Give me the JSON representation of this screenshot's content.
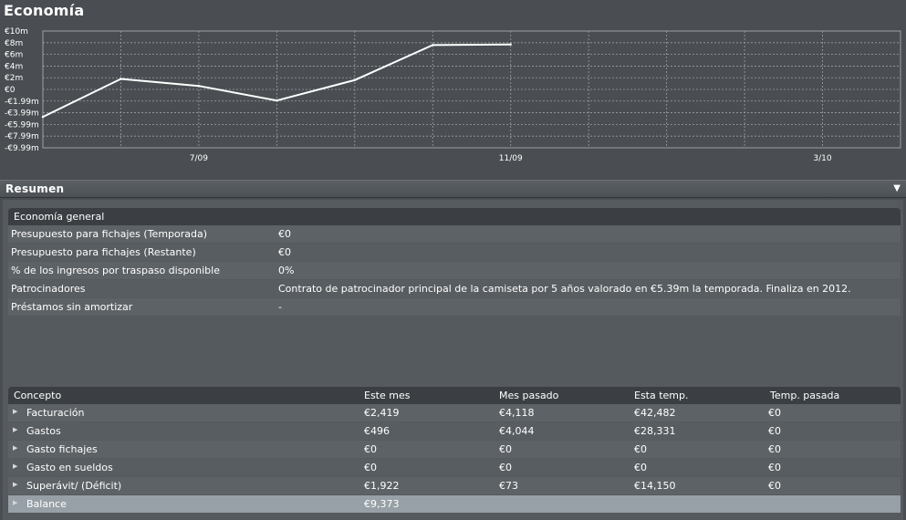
{
  "page": {
    "title": "Economía"
  },
  "chart_data": {
    "type": "line",
    "title": "",
    "xlabel": "",
    "ylabel": "",
    "y_tick_labels": [
      "€10m",
      "€8m",
      "€6m",
      "€4m",
      "€2m",
      "€0",
      "-€1.99m",
      "-€3.99m",
      "-€5.99m",
      "-€7.99m",
      "-€9.99m"
    ],
    "y_tick_values": [
      10,
      8,
      6,
      4,
      2,
      0,
      -1.99,
      -3.99,
      -5.99,
      -7.99,
      -9.99
    ],
    "ylim": [
      -9.99,
      10
    ],
    "x_tick_labels": [
      {
        "label": "7/09",
        "index": 2
      },
      {
        "label": "11/09",
        "index": 6
      },
      {
        "label": "3/10",
        "index": 10
      }
    ],
    "x_count": 12,
    "grid": true,
    "series": [
      {
        "values": [
          -4.7,
          1.8,
          0.6,
          -1.9,
          1.6,
          7.6,
          7.7
        ]
      }
    ],
    "line_color": "#ffffff",
    "grid_color": "#9aa0a4"
  },
  "resumen": {
    "label": "Resumen",
    "toggle_icon": "triangle-down-icon"
  },
  "general": {
    "heading": "Economía general",
    "rows": [
      {
        "label": "Presupuesto para fichajes (Temporada)",
        "value": "€0"
      },
      {
        "label": "Presupuesto para fichajes (Restante)",
        "value": "€0"
      },
      {
        "label": "% de los ingresos por traspaso disponible",
        "value": "0%"
      },
      {
        "label": "Patrocinadores",
        "value": "Contrato de patrocinador principal de la camiseta por 5 años valorado en €5.39m la temporada. Finaliza en 2012."
      },
      {
        "label": "Préstamos sin amortizar",
        "value": "-"
      }
    ]
  },
  "table": {
    "headers": [
      "Concepto",
      "Este mes",
      "Mes pasado",
      "Esta temp.",
      "Temp. pasada"
    ],
    "rows": [
      {
        "concept": "Facturación",
        "este_mes": "€2,419",
        "mes_pasado": "€4,118",
        "esta_temp": "€42,482",
        "temp_pasada": "€0"
      },
      {
        "concept": "Gastos",
        "este_mes": "€496",
        "mes_pasado": "€4,044",
        "esta_temp": "€28,331",
        "temp_pasada": "€0"
      },
      {
        "concept": "Gasto fichajes",
        "este_mes": "€0",
        "mes_pasado": "€0",
        "esta_temp": "€0",
        "temp_pasada": "€0"
      },
      {
        "concept": "Gasto en sueldos",
        "este_mes": "€0",
        "mes_pasado": "€0",
        "esta_temp": "€0",
        "temp_pasada": "€0"
      },
      {
        "concept": "Superávit/ (Déficit)",
        "este_mes": "€1,922",
        "mes_pasado": "€73",
        "esta_temp": "€14,150",
        "temp_pasada": "€0"
      }
    ],
    "balance": {
      "concept": "Balance",
      "este_mes": "€9,373"
    },
    "bullet_icon": "play-arrow-icon"
  }
}
